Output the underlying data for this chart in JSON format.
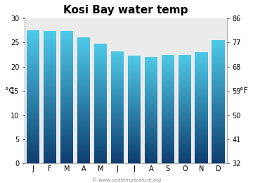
{
  "title": "Kosi Bay water temp",
  "months": [
    "J",
    "F",
    "M",
    "A",
    "M",
    "J",
    "J",
    "A",
    "S",
    "O",
    "N",
    "D"
  ],
  "values_c": [
    27.5,
    27.3,
    27.3,
    26.0,
    24.8,
    23.2,
    22.3,
    22.0,
    22.5,
    22.5,
    23.0,
    25.5
  ],
  "ylim_c": [
    0,
    30
  ],
  "yticks_c": [
    0,
    5,
    10,
    15,
    20,
    25,
    30
  ],
  "yticks_f": [
    32,
    41,
    50,
    59,
    68,
    77,
    86
  ],
  "ylabel_left": "°C",
  "ylabel_right": "°F",
  "bar_color_top": "#4ec9e8",
  "bar_color_bottom": "#0d3d6e",
  "fig_bg": "#ffffff",
  "plot_bg": "#ebebeb",
  "title_fontsize": 11,
  "tick_fontsize": 7,
  "watermark": "© www.seatemperature.org"
}
